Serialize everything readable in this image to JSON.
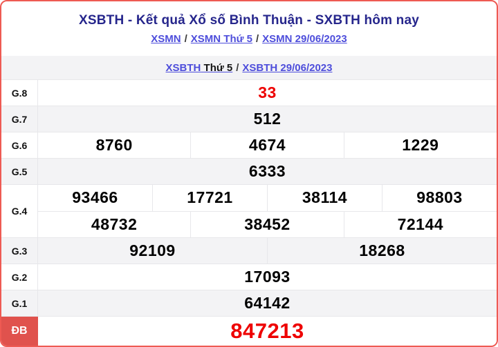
{
  "header": {
    "title": "XSBTH - Kết quả Xổ số Bình Thuận - SXBTH hôm nay",
    "breadcrumb_xsmn": {
      "links": [
        "XSMN",
        "XSMN Thứ 5",
        "XSMN 29/06/2023"
      ],
      "separator": "/"
    },
    "breadcrumb_xsbth": {
      "link_region": "XSBTH",
      "day": "Thứ 5",
      "separator": "/",
      "link_date": "XSBTH 29/06/2023"
    }
  },
  "results": {
    "rows": [
      {
        "label": "G.8",
        "lines": [
          [
            "33"
          ]
        ],
        "value_color": "red"
      },
      {
        "label": "G.7",
        "lines": [
          [
            "512"
          ]
        ]
      },
      {
        "label": "G.6",
        "lines": [
          [
            "8760",
            "4674",
            "1229"
          ]
        ]
      },
      {
        "label": "G.5",
        "lines": [
          [
            "6333"
          ]
        ]
      },
      {
        "label": "G.4",
        "lines": [
          [
            "93466",
            "17721",
            "38114",
            "98803"
          ],
          [
            "48732",
            "38452",
            "72144"
          ]
        ]
      },
      {
        "label": "G.3",
        "lines": [
          [
            "92109",
            "18268"
          ]
        ]
      },
      {
        "label": "G.2",
        "lines": [
          [
            "17093"
          ]
        ]
      },
      {
        "label": "G.1",
        "lines": [
          [
            "64142"
          ]
        ]
      },
      {
        "label": "ĐB",
        "lines": [
          [
            "847213"
          ]
        ],
        "value_color": "red",
        "special": true
      }
    ]
  },
  "colors": {
    "border_color": "#ee5a53",
    "title_color": "#26268c",
    "link_color": "#4d4ddb",
    "red_value": "#ee0000",
    "special_label_bg": "#e0524d",
    "shaded_row_bg": "#f3f3f5"
  }
}
